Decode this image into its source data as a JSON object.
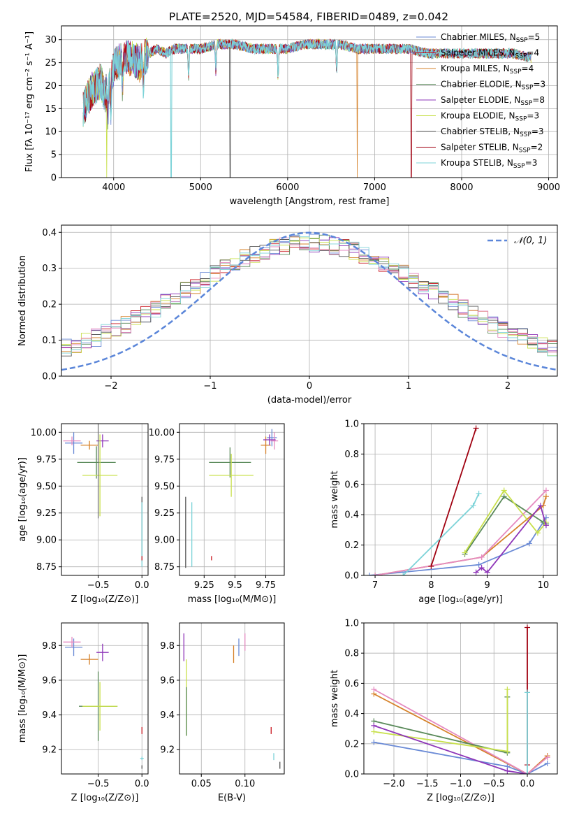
{
  "figure": {
    "title": "PLATE=2520, MJD=54584, FIBERID=0489, z=0.042"
  },
  "colors": {
    "model_colors": [
      "#6a8ad6",
      "#c8151e",
      "#d6822a",
      "#5a8a5a",
      "#8e35b8",
      "#c8e04c",
      "#555555",
      "#a00010",
      "#7dd3d8"
    ],
    "pink": "#e58ac0",
    "gaussian": "#5b86d9"
  },
  "chart_data": [
    {
      "id": "spectrum",
      "type": "line",
      "title": "PLATE=2520, MJD=54584, FIBERID=0489, z=0.042",
      "xlabel": "wavelength [Angstrom, rest frame]",
      "ylabel": "Flux [fλ 10⁻¹⁷ erg cm⁻² s⁻¹ A⁻¹]",
      "xlim": [
        3400,
        9100
      ],
      "ylim": [
        0,
        33
      ],
      "xticks": [
        4000,
        5000,
        6000,
        7000,
        8000,
        9000
      ],
      "yticks": [
        0,
        5,
        10,
        15,
        20,
        25,
        30
      ],
      "legend_loc": "upper right",
      "x": [
        3650,
        3700,
        3750,
        3800,
        3850,
        3900,
        3950,
        4000,
        4100,
        4200,
        4300,
        4400,
        4500,
        4600,
        4700,
        4800,
        5000,
        5200,
        5400,
        5600,
        5800,
        6000,
        6200,
        6400,
        6600,
        6800,
        7000,
        7200,
        7400,
        7600,
        7800,
        8000,
        8200,
        8400,
        8600,
        8800
      ],
      "series": [
        {
          "name": "Chabrier MILES, N_SSP=5",
          "values": [
            15,
            17,
            19,
            20,
            21,
            18,
            20,
            24,
            26,
            26,
            25,
            27,
            28,
            27,
            28,
            28,
            28,
            29,
            29,
            28,
            28,
            28,
            29,
            29,
            29,
            28,
            28,
            28,
            28,
            27,
            27,
            27,
            27,
            27,
            27,
            26
          ]
        },
        {
          "name": "Salpeter MILES, N_SSP=4",
          "values": [
            15,
            17,
            19,
            20,
            21,
            18,
            21,
            24,
            26,
            26,
            25,
            27,
            28,
            27,
            28,
            28,
            28,
            29,
            29,
            28,
            28,
            28,
            29,
            29,
            29,
            28,
            28,
            28,
            28,
            27,
            27,
            27,
            27,
            27,
            27,
            26
          ]
        },
        {
          "name": "Kroupa MILES, N_SSP=4",
          "values": [
            15,
            17,
            19,
            20,
            21,
            18,
            20,
            24,
            26,
            26,
            24,
            27,
            28,
            27,
            28,
            28,
            28,
            29,
            29,
            28,
            28,
            28,
            29,
            29,
            29,
            28,
            28,
            28,
            28,
            27,
            27,
            27,
            27,
            27,
            27,
            26
          ]
        },
        {
          "name": "Chabrier ELODIE, N_SSP=3",
          "values": [
            15,
            17,
            19,
            20,
            21,
            18,
            20,
            24,
            26,
            26,
            25,
            27,
            28,
            27,
            28,
            28,
            28,
            29,
            29,
            28,
            28,
            28,
            29,
            29,
            29,
            28,
            28,
            28,
            28,
            27,
            27,
            27,
            27,
            27,
            27,
            26
          ]
        },
        {
          "name": "Salpeter ELODIE, N_SSP=8",
          "values": [
            15,
            17,
            19,
            20,
            21,
            18,
            20,
            24,
            26,
            26,
            25,
            27,
            28,
            27,
            28,
            28,
            28,
            29,
            29,
            28,
            28,
            28,
            29,
            29,
            29,
            28,
            28,
            28,
            28,
            27,
            27,
            27,
            27,
            27,
            27,
            26
          ]
        },
        {
          "name": "Kroupa ELODIE, N_SSP=3",
          "values": [
            15,
            17,
            19,
            20,
            21,
            18,
            20,
            24,
            26,
            26,
            25,
            27,
            28,
            27,
            28,
            28,
            28,
            29,
            29,
            28,
            28,
            28,
            29,
            29,
            29,
            28,
            28,
            28,
            28,
            27,
            27,
            27,
            27,
            27,
            27,
            26
          ]
        },
        {
          "name": "Chabrier STELIB, N_SSP=3",
          "values": [
            15,
            17,
            19,
            20,
            21,
            18,
            20,
            24,
            26,
            26,
            25,
            27,
            28,
            27,
            28,
            28,
            28,
            29,
            29,
            28,
            28,
            28,
            29,
            29,
            29,
            28,
            28,
            28,
            28,
            27,
            27,
            27,
            27,
            27,
            27,
            26
          ]
        },
        {
          "name": "Salpeter STELIB, N_SSP=2",
          "values": [
            15,
            17,
            19,
            20,
            21,
            18,
            20,
            24,
            26,
            26,
            25,
            27,
            28,
            27,
            28,
            28,
            28,
            29,
            29,
            28,
            28,
            28,
            29,
            29,
            29,
            28,
            28,
            28,
            28,
            27,
            27,
            27,
            27,
            27,
            27,
            26
          ]
        },
        {
          "name": "Kroupa STELIB, N_SSP=3",
          "values": [
            15,
            17,
            19,
            20,
            21,
            18,
            20,
            24,
            26,
            26,
            25,
            27,
            28,
            27,
            28,
            28,
            28,
            29,
            29,
            28,
            28,
            28,
            29,
            29,
            29,
            28,
            28,
            28,
            28,
            27,
            27,
            27,
            27,
            27,
            27,
            26
          ]
        }
      ]
    },
    {
      "id": "residuals",
      "type": "line",
      "xlabel": "(data-model)/error",
      "ylabel": "Normed distribution",
      "xlim": [
        -2.5,
        2.5
      ],
      "ylim": [
        0,
        0.42
      ],
      "xticks": [
        -2,
        -1,
        0,
        1,
        2
      ],
      "yticks": [
        0.0,
        0.1,
        0.2,
        0.3,
        0.4
      ],
      "legend": [
        "𝒩(0, 1)"
      ],
      "legend_loc": "upper right",
      "gaussian": {
        "mean": 0,
        "sigma": 1
      },
      "histogram_bin_width": 0.1
    },
    {
      "id": "age_vs_Z",
      "type": "scatter",
      "xlabel": "Z [log₁₀(Z/Z⊙)]",
      "ylabel": "age  [log₁₀(age/yr)]",
      "xlim": [
        -0.92,
        0.07
      ],
      "ylim": [
        8.67,
        10.08
      ],
      "xticks": [
        -0.5,
        0.0
      ],
      "yticks": [
        8.75,
        9.0,
        9.25,
        9.5,
        9.75,
        10.0
      ],
      "points": [
        {
          "x": -0.78,
          "y": 9.9,
          "xerr": 0.1,
          "yerr": 0.1,
          "color": "#6a8ad6"
        },
        {
          "x": -0.8,
          "y": 9.92,
          "xerr": 0.1,
          "yerr": 0.04,
          "color": "#e58ac0"
        },
        {
          "x": -0.6,
          "y": 9.88,
          "xerr": 0.1,
          "yerr": 0.04,
          "color": "#d6822a"
        },
        {
          "x": -0.45,
          "y": 9.92,
          "xerr": 0.07,
          "yerr": 0.06,
          "color": "#8e35b8"
        },
        {
          "x": -0.52,
          "y": 9.72,
          "xerr": 0.22,
          "yerr": 0.15,
          "color": "#5a8a5a"
        },
        {
          "x": -0.48,
          "y": 9.6,
          "xerr": 0.2,
          "yerr": 0.38,
          "color": "#c8e04c"
        },
        {
          "x": -0.5,
          "y": 9.7,
          "xerr": 0.0,
          "yerr": 0.5,
          "color": "#777777"
        },
        {
          "x": 0.0,
          "y": 9.1,
          "xerr": 0.0,
          "yerr": 0.3,
          "color": "#555555"
        },
        {
          "x": 0.0,
          "y": 9.05,
          "xerr": 0.0,
          "yerr": 0.3,
          "color": "#7dd3d8"
        },
        {
          "x": 0.0,
          "y": 8.83,
          "xerr": 0.0,
          "yerr": 0.02,
          "color": "#c8151e"
        }
      ]
    },
    {
      "id": "age_vs_mass",
      "type": "scatter",
      "xlabel": "mass [log₁₀(M/M⊙)]",
      "ylabel": "",
      "xlim": [
        9.05,
        9.9
      ],
      "ylim": [
        8.67,
        10.08
      ],
      "xticks": [
        9.25,
        9.5,
        9.75
      ],
      "yticks": [
        8.75,
        9.0,
        9.25,
        9.5,
        9.75,
        10.0
      ],
      "points": [
        {
          "x": 9.8,
          "y": 9.95,
          "xerr": 0.04,
          "yerr": 0.08,
          "color": "#6a8ad6"
        },
        {
          "x": 9.82,
          "y": 9.92,
          "xerr": 0.03,
          "yerr": 0.08,
          "color": "#e58ac0"
        },
        {
          "x": 9.75,
          "y": 9.88,
          "xerr": 0.04,
          "yerr": 0.08,
          "color": "#d6822a"
        },
        {
          "x": 9.78,
          "y": 9.93,
          "xerr": 0.05,
          "yerr": 0.05,
          "color": "#8e35b8"
        },
        {
          "x": 9.46,
          "y": 9.72,
          "xerr": 0.17,
          "yerr": 0.14,
          "color": "#5a8a5a"
        },
        {
          "x": 9.47,
          "y": 9.6,
          "xerr": 0.18,
          "yerr": 0.2,
          "color": "#c8e04c"
        },
        {
          "x": 9.1,
          "y": 9.07,
          "xerr": 0.0,
          "yerr": 0.33,
          "color": "#555555"
        },
        {
          "x": 9.15,
          "y": 9.05,
          "xerr": 0.0,
          "yerr": 0.3,
          "color": "#7dd3d8"
        },
        {
          "x": 9.31,
          "y": 8.83,
          "xerr": 0.0,
          "yerr": 0.02,
          "color": "#c8151e"
        }
      ]
    },
    {
      "id": "weight_vs_age",
      "type": "line",
      "xlabel": "age  [log₁₀(age/yr)]",
      "ylabel": "mass weight",
      "xlim": [
        6.8,
        10.25
      ],
      "ylim": [
        0,
        1.0
      ],
      "xticks": [
        7,
        8,
        9,
        10
      ],
      "yticks": [
        0.0,
        0.2,
        0.4,
        0.6,
        0.8,
        1.0
      ],
      "series": [
        {
          "x": [
            6.9,
            8.85,
            9.75,
            10.05
          ],
          "values": [
            0.0,
            0.07,
            0.21,
            0.38
          ],
          "color": "#6a8ad6"
        },
        {
          "x": [
            7.0,
            8.9,
            10.0,
            10.05
          ],
          "values": [
            0.0,
            0.12,
            0.46,
            0.52
          ],
          "color": "#d6822a"
        },
        {
          "x": [
            7.0,
            8.9,
            10.05
          ],
          "values": [
            0.0,
            0.12,
            0.56
          ],
          "color": "#e58ac0"
        },
        {
          "x": [
            8.6,
            9.3,
            10.0,
            10.05
          ],
          "values": [
            0.14,
            0.52,
            0.35,
            0.34
          ],
          "color": "#5a8a5a"
        },
        {
          "x": [
            8.6,
            9.3,
            9.9,
            10.05
          ],
          "values": [
            0.15,
            0.56,
            0.28,
            0.35
          ],
          "color": "#c8e04c"
        },
        {
          "x": [
            8.8,
            8.9,
            9.0,
            9.95,
            10.05
          ],
          "values": [
            0.02,
            0.05,
            0.02,
            0.46,
            0.33
          ],
          "color": "#8e35b8"
        },
        {
          "x": [
            8.0,
            8.8
          ],
          "values": [
            0.06,
            0.97
          ],
          "color": "#a00010"
        },
        {
          "x": [
            7.5,
            8.75,
            8.85
          ],
          "values": [
            0.0,
            0.46,
            0.54
          ],
          "color": "#7dd3d8"
        }
      ]
    },
    {
      "id": "mass_vs_Z",
      "type": "scatter",
      "xlabel": "Z [log₁₀(Z/Z⊙)]",
      "ylabel": "mass [log₁₀(M/M⊙)]",
      "xlim": [
        -0.92,
        0.07
      ],
      "ylim": [
        9.06,
        9.93
      ],
      "xticks": [
        -0.5,
        0.0
      ],
      "yticks": [
        9.2,
        9.4,
        9.6,
        9.8
      ],
      "points": [
        {
          "x": -0.78,
          "y": 9.79,
          "xerr": 0.1,
          "yerr": 0.05,
          "color": "#6a8ad6"
        },
        {
          "x": -0.8,
          "y": 9.82,
          "xerr": 0.1,
          "yerr": 0.03,
          "color": "#e58ac0"
        },
        {
          "x": -0.6,
          "y": 9.72,
          "xerr": 0.1,
          "yerr": 0.03,
          "color": "#d6822a"
        },
        {
          "x": -0.45,
          "y": 9.76,
          "xerr": 0.07,
          "yerr": 0.05,
          "color": "#8e35b8"
        },
        {
          "x": -0.5,
          "y": 9.45,
          "xerr": 0.22,
          "yerr": 0.2,
          "color": "#5a8a5a"
        },
        {
          "x": -0.48,
          "y": 9.45,
          "xerr": 0.2,
          "yerr": 0.14,
          "color": "#c8e04c"
        },
        {
          "x": 0.0,
          "y": 9.1,
          "xerr": 0.0,
          "yerr": 0.01,
          "color": "#555555"
        },
        {
          "x": 0.0,
          "y": 9.15,
          "xerr": 0.02,
          "yerr": 0.01,
          "color": "#7dd3d8"
        },
        {
          "x": 0.0,
          "y": 9.31,
          "xerr": 0.0,
          "yerr": 0.02,
          "color": "#c8151e"
        }
      ]
    },
    {
      "id": "mass_vs_EBV",
      "type": "scatter",
      "xlabel": "E(B-V)",
      "ylabel": "",
      "xlim": [
        0.025,
        0.145
      ],
      "ylim": [
        9.06,
        9.93
      ],
      "xticks": [
        0.05,
        0.1
      ],
      "yticks": [
        9.2,
        9.4,
        9.6,
        9.8
      ],
      "points": [
        {
          "x": 0.03,
          "y": 9.79,
          "xerr": 0.0,
          "yerr": 0.08,
          "color": "#8e35b8"
        },
        {
          "x": 0.033,
          "y": 9.5,
          "xerr": 0.0,
          "yerr": 0.22,
          "color": "#c8e04c"
        },
        {
          "x": 0.033,
          "y": 9.42,
          "xerr": 0.0,
          "yerr": 0.14,
          "color": "#5a8a5a"
        },
        {
          "x": 0.087,
          "y": 9.75,
          "xerr": 0.0,
          "yerr": 0.05,
          "color": "#d6822a"
        },
        {
          "x": 0.093,
          "y": 9.79,
          "xerr": 0.0,
          "yerr": 0.05,
          "color": "#6a8ad6"
        },
        {
          "x": 0.1,
          "y": 9.82,
          "xerr": 0.0,
          "yerr": 0.05,
          "color": "#e58ac0"
        },
        {
          "x": 0.13,
          "y": 9.31,
          "xerr": 0.0,
          "yerr": 0.02,
          "color": "#c8151e"
        },
        {
          "x": 0.133,
          "y": 9.16,
          "xerr": 0.0,
          "yerr": 0.02,
          "color": "#7dd3d8"
        },
        {
          "x": 0.14,
          "y": 9.11,
          "xerr": 0.0,
          "yerr": 0.02,
          "color": "#555555"
        }
      ]
    },
    {
      "id": "weight_vs_Z",
      "type": "line",
      "xlabel": "Z [log₁₀(Z/Z⊙)]",
      "ylabel": "mass weight",
      "xlim": [
        -2.45,
        0.45
      ],
      "ylim": [
        0,
        1.0
      ],
      "xticks": [
        -2.0,
        -1.5,
        -1.0,
        -0.5,
        0.0
      ],
      "yticks": [
        0.0,
        0.2,
        0.4,
        0.6,
        0.8,
        1.0
      ],
      "series": [
        {
          "x": [
            -2.3,
            -0.3,
            0.0,
            0.3
          ],
          "values": [
            0.21,
            0.05,
            0.0,
            0.07
          ],
          "color": "#6a8ad6"
        },
        {
          "x": [
            -2.3,
            0.0,
            0.3
          ],
          "values": [
            0.53,
            0.0,
            0.12
          ],
          "color": "#d6822a"
        },
        {
          "x": [
            -2.3,
            0.0,
            0.3
          ],
          "values": [
            0.56,
            0.0,
            0.11
          ],
          "color": "#e58ac0"
        },
        {
          "x": [
            -2.3,
            -0.3,
            -0.3
          ],
          "values": [
            0.35,
            0.14,
            0.51
          ],
          "color": "#5a8a5a"
        },
        {
          "x": [
            -2.3,
            -0.3,
            -0.3
          ],
          "values": [
            0.28,
            0.15,
            0.56
          ],
          "color": "#c8e04c"
        },
        {
          "x": [
            -2.3,
            -0.3,
            0.0
          ],
          "values": [
            0.32,
            0.02,
            0.0
          ],
          "color": "#8e35b8"
        },
        {
          "x": [
            0.0,
            0.0
          ],
          "values": [
            0.06,
            0.97
          ],
          "color": "#a00010"
        },
        {
          "x": [
            0.0,
            0.0
          ],
          "values": [
            0.0,
            0.54
          ],
          "color": "#7dd3d8"
        }
      ]
    }
  ]
}
